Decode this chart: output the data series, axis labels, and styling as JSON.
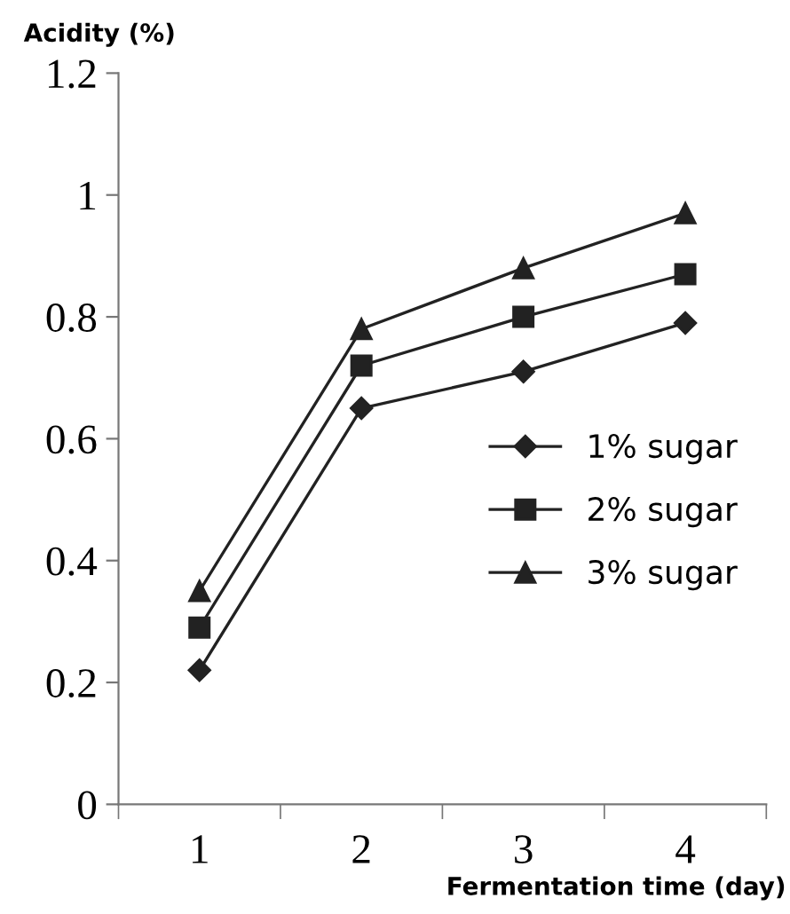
{
  "chart_data": {
    "type": "line",
    "ylabel": "Acidity (%)",
    "xlabel": "Fermentation time (day)",
    "categories": [
      "1",
      "2",
      "3",
      "4"
    ],
    "series": [
      {
        "name": "1% sugar",
        "color": "#222222",
        "marker": "diamond",
        "values": [
          0.22,
          0.65,
          0.71,
          0.79
        ]
      },
      {
        "name": "2% sugar",
        "color": "#222222",
        "marker": "square",
        "values": [
          0.29,
          0.72,
          0.8,
          0.87
        ]
      },
      {
        "name": "3% sugar",
        "color": "#222222",
        "marker": "triangle",
        "values": [
          0.35,
          0.78,
          0.88,
          0.97
        ]
      }
    ],
    "ylim": [
      0,
      1.2
    ],
    "yticks": [
      0,
      0.2,
      0.4,
      0.6,
      0.8,
      1,
      1.2
    ],
    "grid": false,
    "legend": "right",
    "line_style": "solid"
  }
}
